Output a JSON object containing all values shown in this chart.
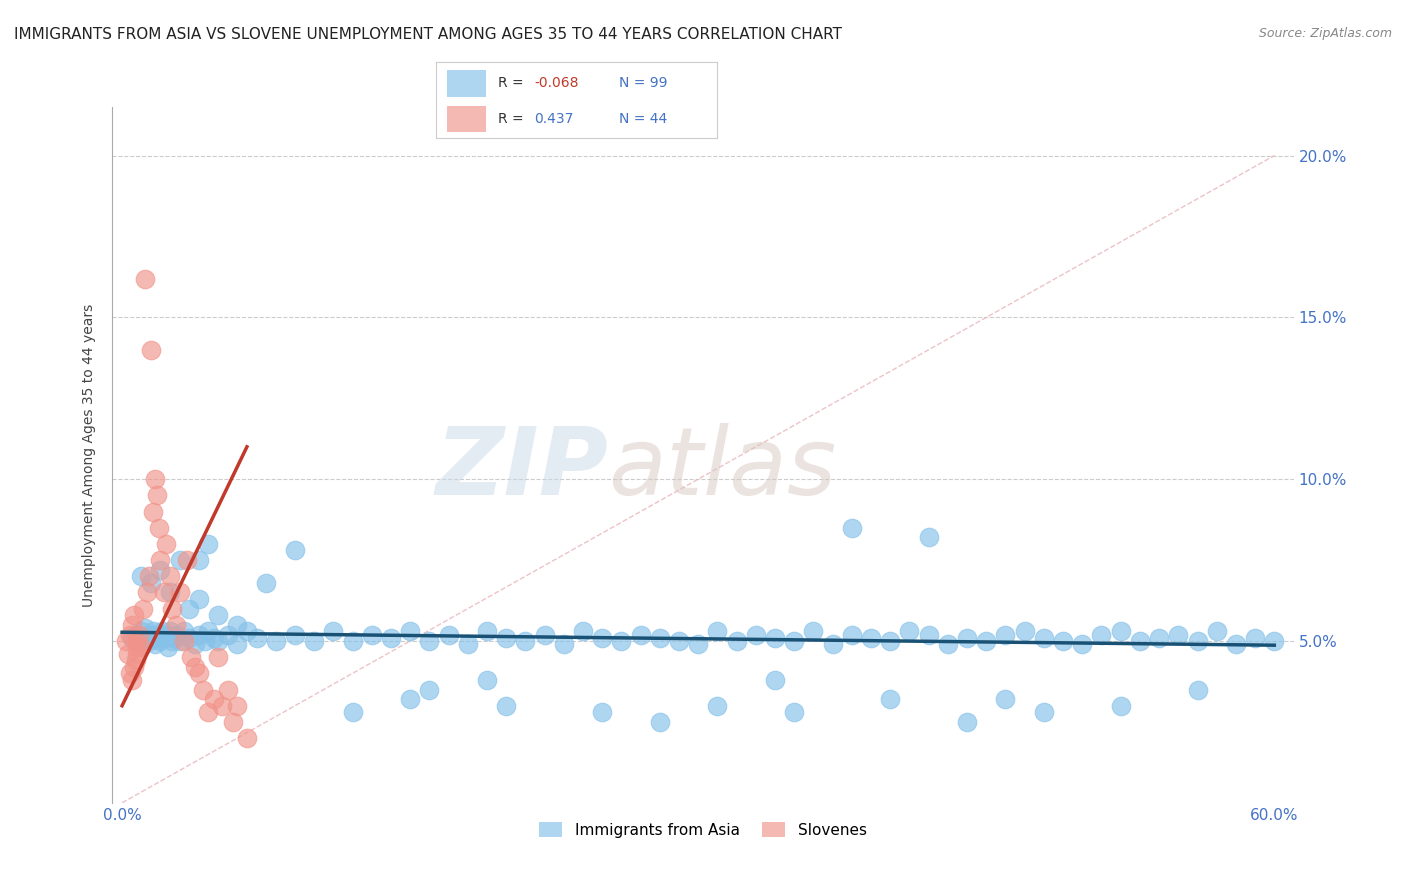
{
  "title": "IMMIGRANTS FROM ASIA VS SLOVENE UNEMPLOYMENT AMONG AGES 35 TO 44 YEARS CORRELATION CHART",
  "source": "Source: ZipAtlas.com",
  "ylabel": "Unemployment Among Ages 35 to 44 years",
  "xlim": [
    -0.005,
    0.61
  ],
  "ylim": [
    0.0,
    0.215
  ],
  "xticks": [
    0.0,
    0.1,
    0.2,
    0.3,
    0.4,
    0.5,
    0.6
  ],
  "xticklabels": [
    "0.0%",
    "",
    "",
    "",
    "",
    "",
    "60.0%"
  ],
  "yticks": [
    0.05,
    0.1,
    0.15,
    0.2
  ],
  "yticklabels": [
    "5.0%",
    "10.0%",
    "15.0%",
    "20.0%"
  ],
  "blue_color": "#85C1E9",
  "pink_color": "#F1948A",
  "blue_line_color": "#1A5276",
  "pink_line_color": "#C0392B",
  "diag_line_color": "#E8B4B8",
  "horiz_line_color": "#CCCCCC",
  "background_color": "#FFFFFF",
  "legend_R_blue": "-0.068",
  "legend_N_blue": "99",
  "legend_R_pink": "0.437",
  "legend_N_pink": "44",
  "legend_label_blue": "Immigrants from Asia",
  "legend_label_pink": "Slovenes",
  "watermark_zip": "ZIP",
  "watermark_atlas": "atlas",
  "title_fontsize": 11,
  "axis_label_fontsize": 10,
  "tick_fontsize": 11,
  "source_fontsize": 9,
  "blue_scatter_x": [
    0.005,
    0.007,
    0.009,
    0.01,
    0.011,
    0.012,
    0.013,
    0.014,
    0.015,
    0.016,
    0.017,
    0.018,
    0.019,
    0.02,
    0.021,
    0.022,
    0.023,
    0.024,
    0.025,
    0.026,
    0.027,
    0.028,
    0.03,
    0.032,
    0.035,
    0.038,
    0.04,
    0.043,
    0.045,
    0.048,
    0.05,
    0.055,
    0.06,
    0.065,
    0.07,
    0.08,
    0.09,
    0.1,
    0.11,
    0.12,
    0.13,
    0.14,
    0.15,
    0.16,
    0.17,
    0.18,
    0.19,
    0.2,
    0.21,
    0.22,
    0.23,
    0.24,
    0.25,
    0.26,
    0.27,
    0.28,
    0.29,
    0.3,
    0.31,
    0.32,
    0.33,
    0.34,
    0.35,
    0.36,
    0.37,
    0.38,
    0.39,
    0.4,
    0.41,
    0.42,
    0.43,
    0.44,
    0.45,
    0.46,
    0.47,
    0.48,
    0.49,
    0.5,
    0.51,
    0.52,
    0.53,
    0.54,
    0.55,
    0.56,
    0.57,
    0.58,
    0.59,
    0.6,
    0.01,
    0.015,
    0.02,
    0.025,
    0.03,
    0.035,
    0.04,
    0.05,
    0.06,
    0.075,
    0.09
  ],
  "blue_scatter_y": [
    0.051,
    0.052,
    0.05,
    0.053,
    0.049,
    0.054,
    0.051,
    0.05,
    0.052,
    0.053,
    0.049,
    0.051,
    0.052,
    0.05,
    0.053,
    0.051,
    0.052,
    0.048,
    0.053,
    0.05,
    0.051,
    0.052,
    0.05,
    0.053,
    0.051,
    0.049,
    0.052,
    0.05,
    0.053,
    0.051,
    0.05,
    0.052,
    0.049,
    0.053,
    0.051,
    0.05,
    0.052,
    0.05,
    0.053,
    0.05,
    0.052,
    0.051,
    0.053,
    0.05,
    0.052,
    0.049,
    0.053,
    0.051,
    0.05,
    0.052,
    0.049,
    0.053,
    0.051,
    0.05,
    0.052,
    0.051,
    0.05,
    0.049,
    0.053,
    0.05,
    0.052,
    0.051,
    0.05,
    0.053,
    0.049,
    0.052,
    0.051,
    0.05,
    0.053,
    0.052,
    0.049,
    0.051,
    0.05,
    0.052,
    0.053,
    0.051,
    0.05,
    0.049,
    0.052,
    0.053,
    0.05,
    0.051,
    0.052,
    0.05,
    0.053,
    0.049,
    0.051,
    0.05,
    0.07,
    0.068,
    0.072,
    0.065,
    0.075,
    0.06,
    0.063,
    0.058,
    0.055,
    0.068,
    0.078
  ],
  "blue_scatter_y_extra": [
    0.075,
    0.08,
    0.085,
    0.082,
    0.028,
    0.032,
    0.03,
    0.028,
    0.025,
    0.035,
    0.038,
    0.03,
    0.028,
    0.032,
    0.025,
    0.028,
    0.03,
    0.035,
    0.038,
    0.032
  ],
  "blue_scatter_x_extra": [
    0.04,
    0.045,
    0.38,
    0.42,
    0.12,
    0.15,
    0.2,
    0.25,
    0.28,
    0.16,
    0.19,
    0.31,
    0.35,
    0.4,
    0.44,
    0.48,
    0.52,
    0.56,
    0.34,
    0.46
  ],
  "pink_scatter_x": [
    0.002,
    0.003,
    0.004,
    0.004,
    0.005,
    0.005,
    0.006,
    0.006,
    0.007,
    0.007,
    0.008,
    0.008,
    0.009,
    0.01,
    0.011,
    0.012,
    0.013,
    0.014,
    0.015,
    0.016,
    0.017,
    0.018,
    0.019,
    0.02,
    0.022,
    0.023,
    0.025,
    0.026,
    0.028,
    0.03,
    0.032,
    0.034,
    0.036,
    0.038,
    0.04,
    0.042,
    0.045,
    0.048,
    0.05,
    0.052,
    0.055,
    0.058,
    0.06,
    0.065
  ],
  "pink_scatter_y": [
    0.05,
    0.046,
    0.052,
    0.04,
    0.055,
    0.038,
    0.058,
    0.042,
    0.05,
    0.044,
    0.048,
    0.046,
    0.052,
    0.048,
    0.06,
    0.162,
    0.065,
    0.07,
    0.14,
    0.09,
    0.1,
    0.095,
    0.085,
    0.075,
    0.065,
    0.08,
    0.07,
    0.06,
    0.055,
    0.065,
    0.05,
    0.075,
    0.045,
    0.042,
    0.04,
    0.035,
    0.028,
    0.032,
    0.045,
    0.03,
    0.035,
    0.025,
    0.03,
    0.02
  ],
  "blue_trend_x": [
    0.0,
    0.6
  ],
  "blue_trend_y": [
    0.0527,
    0.0487
  ],
  "pink_trend_x": [
    0.0,
    0.065
  ],
  "pink_trend_y": [
    0.03,
    0.11
  ],
  "diag_line_x": [
    0.0,
    0.6
  ],
  "diag_line_y": [
    0.0,
    0.2
  ]
}
